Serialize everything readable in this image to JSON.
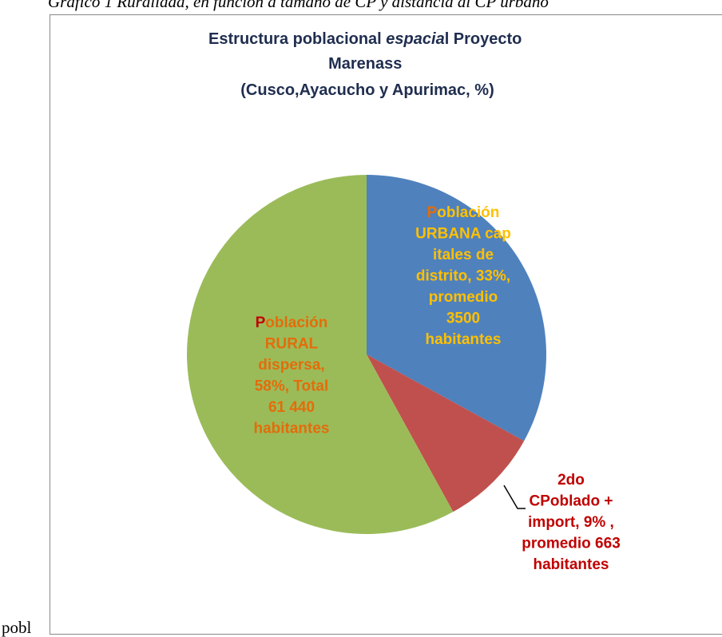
{
  "caption": "Gráfico 1 Ruralidad, en función a tamaño de CP y distancia al CP urbano",
  "footer_text": "pobl",
  "chart_data": {
    "type": "pie",
    "title": [
      "Estructura poblacional ",
      "espacia",
      "l Proyecto",
      "Marenass",
      "(Cusco,Ayacucho y Apurimac, %)"
    ],
    "values": [
      33,
      9,
      58
    ],
    "colors": [
      "#4f81bd",
      "#c0504d",
      "#9bbb59"
    ],
    "value_labels": [
      [
        "Población",
        "URBANA cap",
        "itales de",
        "distrito, 33%,",
        "promedio",
        "3500",
        "habitantes"
      ],
      [
        "2do",
        "CPoblado +",
        "import, 9%  ,",
        "promedio 663",
        "habitantes"
      ],
      [
        "Población",
        "RURAL",
        "dispersa,",
        "58%,  Total",
        "61 440",
        "habitantes"
      ]
    ],
    "label_colors": [
      "#ffc000",
      "#c00000",
      "#e46c0a"
    ],
    "label_first_letter_colors": [
      "#e46c0a",
      "#c00000",
      "#c00000"
    ]
  }
}
